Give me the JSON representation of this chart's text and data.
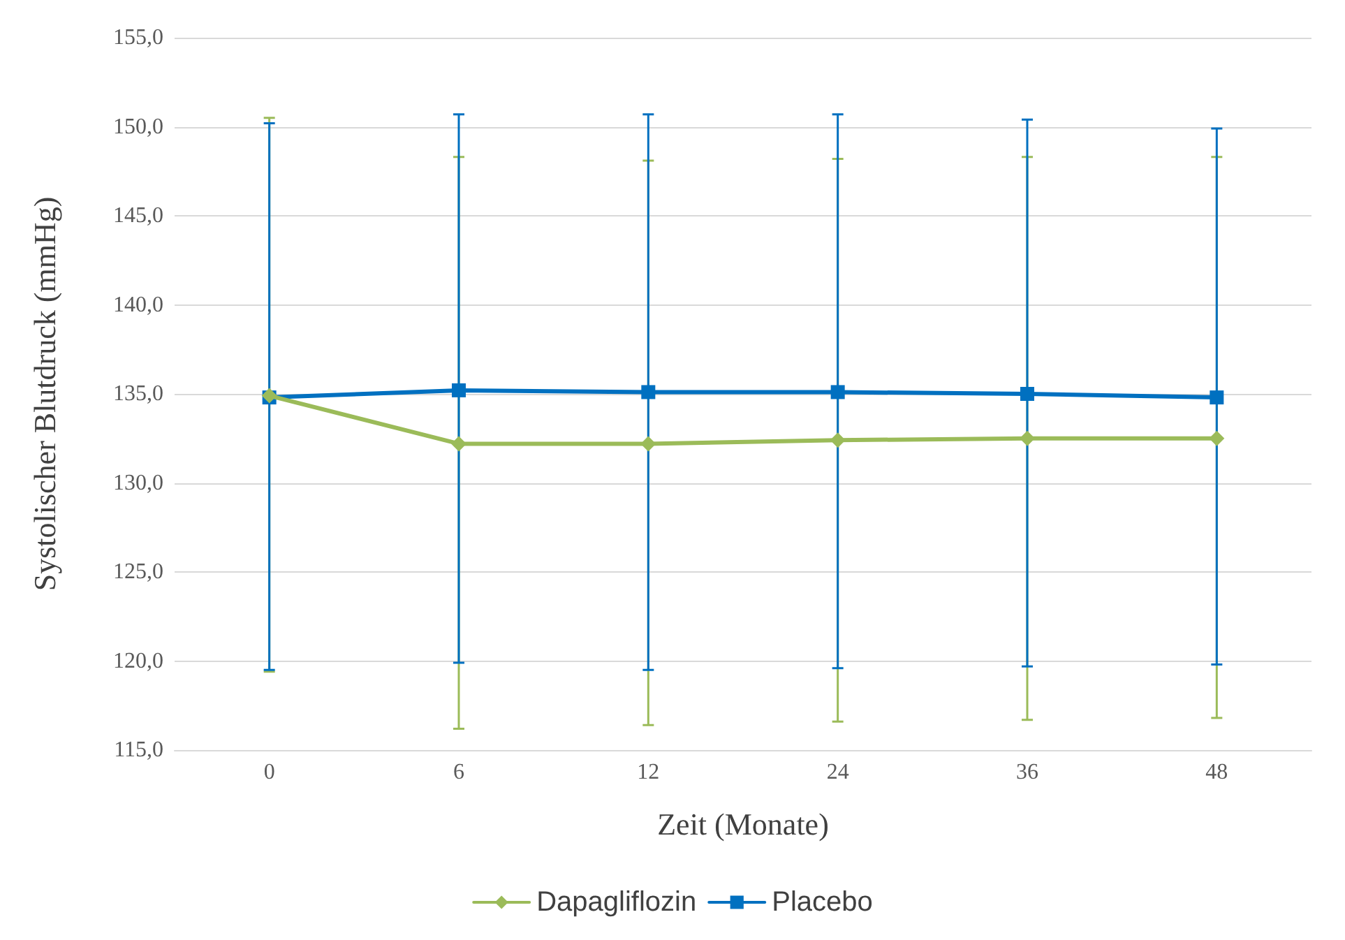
{
  "chart_data": {
    "type": "line",
    "xlabel": "Zeit (Monate)",
    "ylabel": "Systolischer Blutdruck (mmHg)",
    "categories": [
      "0",
      "6",
      "12",
      "24",
      "36",
      "48"
    ],
    "series": [
      {
        "name": "Dapagliflozin",
        "color": "#9bbb59",
        "marker": "diamond",
        "values": [
          134.9,
          132.2,
          132.2,
          132.4,
          132.5,
          132.5
        ],
        "errors": [
          [
            119.4,
            150.5
          ],
          [
            116.2,
            148.3
          ],
          [
            116.4,
            148.1
          ],
          [
            116.6,
            148.2
          ],
          [
            116.7,
            148.3
          ],
          [
            116.8,
            148.3
          ]
        ]
      },
      {
        "name": "Placebo",
        "color": "#0070c0",
        "marker": "square",
        "values": [
          134.8,
          135.2,
          135.1,
          135.1,
          135.0,
          134.8
        ],
        "errors": [
          [
            119.5,
            150.2
          ],
          [
            119.9,
            150.7
          ],
          [
            119.5,
            150.7
          ],
          [
            119.6,
            150.7
          ],
          [
            119.7,
            150.4
          ],
          [
            119.8,
            149.9
          ]
        ]
      }
    ],
    "ylim": [
      115,
      155
    ],
    "yticks": [
      {
        "value": 115,
        "label": "115,0"
      },
      {
        "value": 120,
        "label": "120,0"
      },
      {
        "value": 125,
        "label": "125,0"
      },
      {
        "value": 130,
        "label": "130,0"
      },
      {
        "value": 135,
        "label": "135,0"
      },
      {
        "value": 140,
        "label": "140,0"
      },
      {
        "value": 145,
        "label": "145,0"
      },
      {
        "value": 150,
        "label": "150,0"
      },
      {
        "value": 155,
        "label": "155,0"
      }
    ],
    "grid": "y",
    "legend": "bottom",
    "line_style": "solid"
  }
}
